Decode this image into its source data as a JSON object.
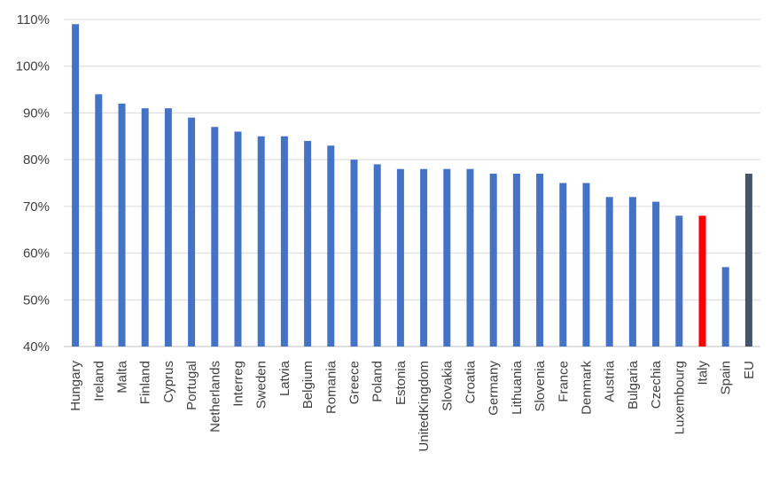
{
  "chart_data": {
    "type": "bar",
    "categories": [
      "Hungary",
      "Ireland",
      "Malta",
      "Finland",
      "Cyprus",
      "Portugal",
      "Netherlands",
      "Interreg",
      "Sweden",
      "Latvia",
      "Belgium",
      "Romania",
      "Greece",
      "Poland",
      "Estonia",
      "UnitedKingdom",
      "Slovakia",
      "Croatia",
      "Germany",
      "Lithuania",
      "Slovenia",
      "France",
      "Denmark",
      "Austria",
      "Bulgaria",
      "Czechia",
      "Luxembourg",
      "Italy",
      "Spain",
      "EU"
    ],
    "values": [
      109,
      94,
      92,
      91,
      91,
      89,
      87,
      86,
      85,
      85,
      84,
      83,
      80,
      79,
      78,
      78,
      78,
      78,
      77,
      77,
      77,
      75,
      75,
      72,
      72,
      71,
      68,
      68,
      57,
      77
    ],
    "bar_colors": [
      "#4472c4",
      "#4472c4",
      "#4472c4",
      "#4472c4",
      "#4472c4",
      "#4472c4",
      "#4472c4",
      "#4472c4",
      "#4472c4",
      "#4472c4",
      "#4472c4",
      "#4472c4",
      "#4472c4",
      "#4472c4",
      "#4472c4",
      "#4472c4",
      "#4472c4",
      "#4472c4",
      "#4472c4",
      "#4472c4",
      "#4472c4",
      "#4472c4",
      "#4472c4",
      "#4472c4",
      "#4472c4",
      "#4472c4",
      "#4472c4",
      "#ff0000",
      "#4472c4",
      "#44546a"
    ],
    "ylim": [
      40,
      110
    ],
    "yticks": [
      40,
      50,
      60,
      70,
      80,
      90,
      100,
      110
    ],
    "ytick_labels": [
      "40%",
      "50%",
      "60%",
      "70%",
      "80%",
      "90%",
      "100%",
      "110%"
    ],
    "title": "",
    "xlabel": "",
    "ylabel": "",
    "grid": true,
    "legend": "none"
  }
}
